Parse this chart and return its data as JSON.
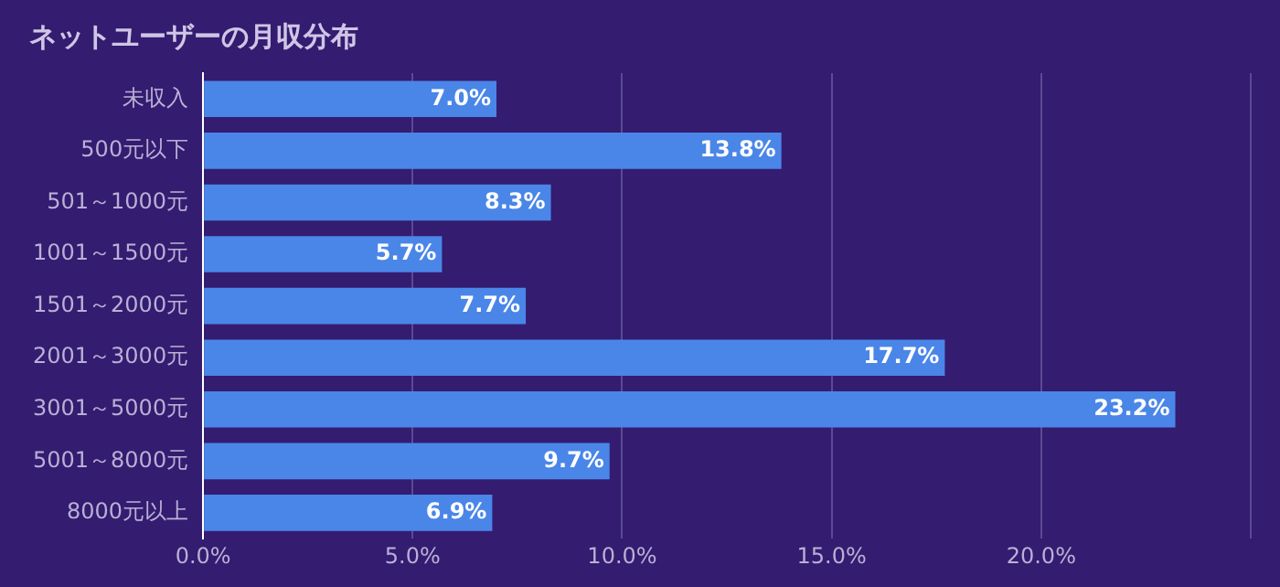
{
  "chart_data": {
    "type": "bar",
    "orientation": "horizontal",
    "title": "ネットユーザーの月収分布",
    "categories": [
      "未収入",
      "500元以下",
      "501～1000元",
      "1001～1500元",
      "1501～2000元",
      "2001～3000元",
      "3001～5000元",
      "5001～8000元",
      "8000元以上"
    ],
    "values": [
      7.0,
      13.8,
      8.3,
      5.7,
      7.7,
      17.7,
      23.2,
      9.7,
      6.9
    ],
    "value_labels": [
      "7.0%",
      "13.8%",
      "8.3%",
      "5.7%",
      "7.7%",
      "17.7%",
      "23.2%",
      "9.7%",
      "6.9%"
    ],
    "color": "#4a86e8",
    "xlim": [
      0,
      25
    ],
    "xticks": [
      {
        "value": 0,
        "label": "0.0%"
      },
      {
        "value": 5,
        "label": "5.0%"
      },
      {
        "value": 10,
        "label": "10.0%"
      },
      {
        "value": 15,
        "label": "15.0%"
      },
      {
        "value": 20,
        "label": "20.0%"
      },
      {
        "value": 25,
        "label": null
      }
    ],
    "grid": "x",
    "legend": false
  }
}
